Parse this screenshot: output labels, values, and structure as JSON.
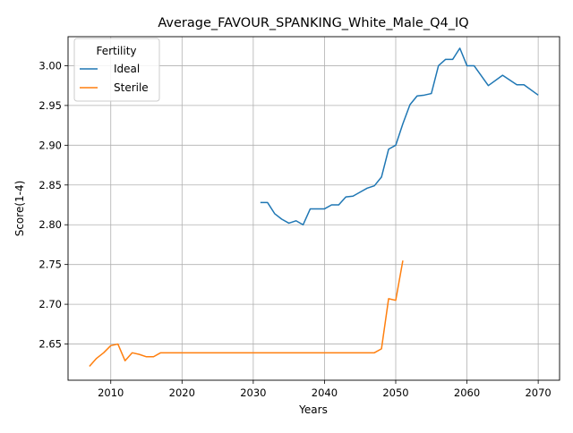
{
  "chart_data": {
    "type": "line",
    "title": "Average_FAVOUR_SPANKING_White_Male_Q4_IQ",
    "xlabel": "Years",
    "ylabel": "Score(1-4)",
    "xlim": [
      2004,
      2073
    ],
    "ylim": [
      2.6045,
      3.0365
    ],
    "x_ticks": [
      2010,
      2020,
      2030,
      2040,
      2050,
      2060,
      2070
    ],
    "y_ticks": [
      2.65,
      2.7,
      2.75,
      2.8,
      2.85,
      2.9,
      2.95,
      3.0
    ],
    "grid": true,
    "legend": {
      "title": "Fertility",
      "placement": "top-left"
    },
    "series": [
      {
        "name": "Ideal",
        "color": "#1f77b4",
        "x": [
          2031,
          2032,
          2033,
          2034,
          2035,
          2036,
          2037,
          2038,
          2039,
          2040,
          2041,
          2042,
          2043,
          2044,
          2045,
          2046,
          2047,
          2048,
          2049,
          2050,
          2051,
          2052,
          2053,
          2054,
          2055,
          2056,
          2057,
          2058,
          2059,
          2060,
          2061,
          2063,
          2065,
          2067,
          2068,
          2070
        ],
        "values": [
          2.828,
          2.828,
          2.814,
          2.807,
          2.802,
          2.805,
          2.8,
          2.82,
          2.82,
          2.82,
          2.825,
          2.825,
          2.835,
          2.836,
          2.841,
          2.846,
          2.849,
          2.86,
          2.895,
          2.9,
          2.927,
          2.951,
          2.962,
          2.963,
          2.965,
          3.0,
          3.008,
          3.008,
          3.022,
          3.0,
          3.0,
          2.975,
          2.988,
          2.976,
          2.976,
          2.963
        ]
      },
      {
        "name": "Sterile",
        "color": "#ff7f0e",
        "x": [
          2007,
          2008,
          2009,
          2010,
          2011,
          2012,
          2013,
          2014,
          2015,
          2016,
          2017,
          2018,
          2019,
          2020,
          2025,
          2030,
          2035,
          2040,
          2045,
          2047,
          2048,
          2049,
          2050,
          2051
        ],
        "values": [
          2.622,
          2.632,
          2.639,
          2.648,
          2.65,
          2.629,
          2.639,
          2.637,
          2.634,
          2.634,
          2.639,
          2.639,
          2.639,
          2.639,
          2.639,
          2.639,
          2.639,
          2.639,
          2.639,
          2.639,
          2.644,
          2.707,
          2.705,
          2.755
        ]
      }
    ]
  }
}
